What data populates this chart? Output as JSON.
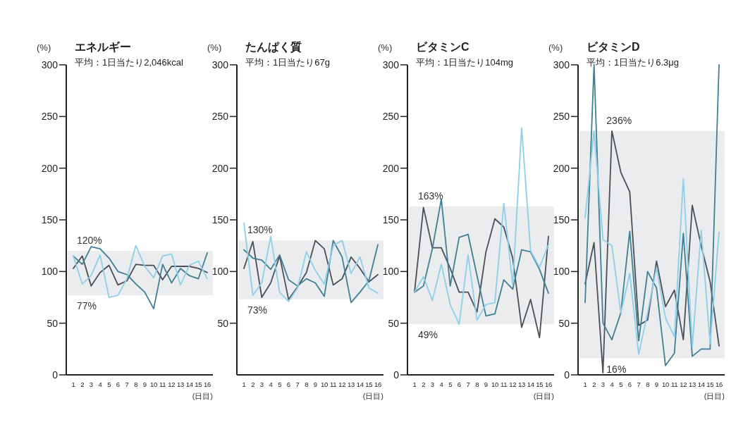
{
  "chart_data": [
    {
      "type": "line",
      "title": "エネルギー",
      "subtitle": "平均：1日当たり2,046kcal",
      "ylabel": "(%)",
      "xlabel": "(日目)",
      "categories": [
        "1",
        "2",
        "3",
        "4",
        "5",
        "6",
        "7",
        "8",
        "9",
        "10",
        "11",
        "12",
        "13",
        "14",
        "15",
        "16"
      ],
      "ylim": [
        0,
        300
      ],
      "yticks": [
        0,
        50,
        100,
        150,
        200,
        250,
        300
      ],
      "grid": false,
      "marker": "none",
      "line_style": "solid",
      "series": [
        {
          "color": "#4a4f55",
          "values": [
            103,
            115,
            86,
            99,
            106,
            87,
            91,
            107,
            106,
            106,
            92,
            105,
            105,
            105,
            103,
            99
          ]
        },
        {
          "color": "#3f7f95",
          "values": [
            115,
            107,
            124,
            122,
            113,
            100,
            97,
            88,
            80,
            64,
            107,
            89,
            103,
            96,
            93,
            118
          ]
        },
        {
          "color": "#8dcfea",
          "values": [
            115,
            88,
            96,
            116,
            75,
            77,
            93,
            125,
            105,
            94,
            115,
            117,
            87,
            106,
            110,
            93
          ]
        }
      ],
      "bands": [
        {
          "axis": "y",
          "from": 77,
          "to": 120,
          "color": "#ebeced"
        }
      ],
      "annotations": [
        {
          "text": "120%",
          "x": "1",
          "y": 120
        },
        {
          "text": "77%",
          "x": "1",
          "y": 77
        }
      ]
    },
    {
      "type": "line",
      "title": "たんぱく質",
      "subtitle": "平均：1日当たり67g",
      "ylabel": "(%)",
      "xlabel": "(日目)",
      "categories": [
        "1",
        "2",
        "3",
        "4",
        "5",
        "6",
        "7",
        "8",
        "9",
        "10",
        "11",
        "12",
        "13",
        "14",
        "15",
        "16"
      ],
      "ylim": [
        0,
        300
      ],
      "yticks": [
        50,
        100,
        150,
        200,
        250,
        300
      ],
      "grid": false,
      "marker": "none",
      "line_style": "solid",
      "series": [
        {
          "color": "#4a4f55",
          "values": [
            103,
            129,
            75,
            89,
            115,
            73,
            85,
            99,
            130,
            122,
            87,
            93,
            114,
            103,
            90,
            97
          ]
        },
        {
          "color": "#3f7f95",
          "values": [
            121,
            113,
            111,
            102,
            116,
            92,
            86,
            93,
            89,
            76,
            130,
            114,
            70,
            80,
            91,
            126
          ]
        },
        {
          "color": "#8dcfea",
          "values": [
            147,
            77,
            89,
            134,
            80,
            71,
            84,
            119,
            101,
            88,
            125,
            130,
            98,
            114,
            84,
            79
          ]
        }
      ],
      "bands": [
        {
          "axis": "y",
          "from": 73,
          "to": 130,
          "color": "#ebeced"
        }
      ],
      "annotations": [
        {
          "text": "130%",
          "x": "1",
          "y": 130
        },
        {
          "text": "73%",
          "x": "1",
          "y": 73
        }
      ]
    },
    {
      "type": "line",
      "title": "ビタミンC",
      "subtitle": "平均：1日当たり104mg",
      "ylabel": "(%)",
      "xlabel": "(日目)",
      "categories": [
        "1",
        "2",
        "3",
        "4",
        "5",
        "6",
        "7",
        "8",
        "9",
        "10",
        "11",
        "12",
        "13",
        "14",
        "15",
        "16"
      ],
      "ylim": [
        0,
        300
      ],
      "yticks": [
        0,
        50,
        100,
        150,
        200,
        250,
        300
      ],
      "grid": false,
      "marker": "none",
      "line_style": "solid",
      "series": [
        {
          "color": "#4a4f55",
          "values": [
            80,
            162,
            123,
            123,
            103,
            80,
            80,
            61,
            119,
            151,
            143,
            113,
            46,
            73,
            36,
            134
          ]
        },
        {
          "color": "#3f7f95",
          "values": [
            80,
            86,
            122,
            170,
            86,
            133,
            136,
            96,
            57,
            59,
            92,
            83,
            121,
            119,
            102,
            79
          ]
        },
        {
          "color": "#8dcfea",
          "values": [
            80,
            95,
            72,
            107,
            68,
            49,
            116,
            53,
            68,
            70,
            166,
            87,
            239,
            120,
            104,
            126
          ]
        }
      ],
      "bands": [
        {
          "axis": "y",
          "from": 49,
          "to": 163,
          "color": "#ebeced"
        }
      ],
      "annotations": [
        {
          "text": "163%",
          "x": "1",
          "y": 163
        },
        {
          "text": "49%",
          "x": "1",
          "y": 49
        }
      ]
    },
    {
      "type": "line",
      "title": "ビタミンD",
      "subtitle": "平均：1日当たり6.3μg",
      "ylabel": "(%)",
      "xlabel": "(日目)",
      "categories": [
        "1",
        "2",
        "3",
        "4",
        "5",
        "6",
        "7",
        "8",
        "9",
        "10",
        "11",
        "12",
        "13",
        "14",
        "15",
        "16"
      ],
      "ylim": [
        0,
        300
      ],
      "yticks": [
        0,
        50,
        100,
        150,
        200,
        250,
        300
      ],
      "grid": false,
      "marker": "none",
      "line_style": "solid",
      "series": [
        {
          "color": "#4a4f55",
          "values": [
            88,
            128,
            2,
            236,
            196,
            177,
            48,
            53,
            110,
            66,
            82,
            34,
            164,
            125,
            90,
            28
          ]
        },
        {
          "color": "#3f7f95",
          "values": [
            70,
            300,
            50,
            34,
            60,
            139,
            33,
            100,
            84,
            9,
            21,
            137,
            18,
            25,
            25,
            300
          ]
        },
        {
          "color": "#8dcfea",
          "values": [
            152,
            236,
            131,
            125,
            60,
            98,
            20,
            60,
            104,
            55,
            37,
            190,
            27,
            140,
            30,
            138
          ]
        }
      ],
      "bands": [
        {
          "axis": "y",
          "from": 16,
          "to": 236,
          "color": "#ebeced"
        }
      ],
      "annotations": [
        {
          "text": "236%",
          "x": "3",
          "y": 236
        },
        {
          "text": "16%",
          "x": "3",
          "y": 16
        }
      ]
    }
  ]
}
